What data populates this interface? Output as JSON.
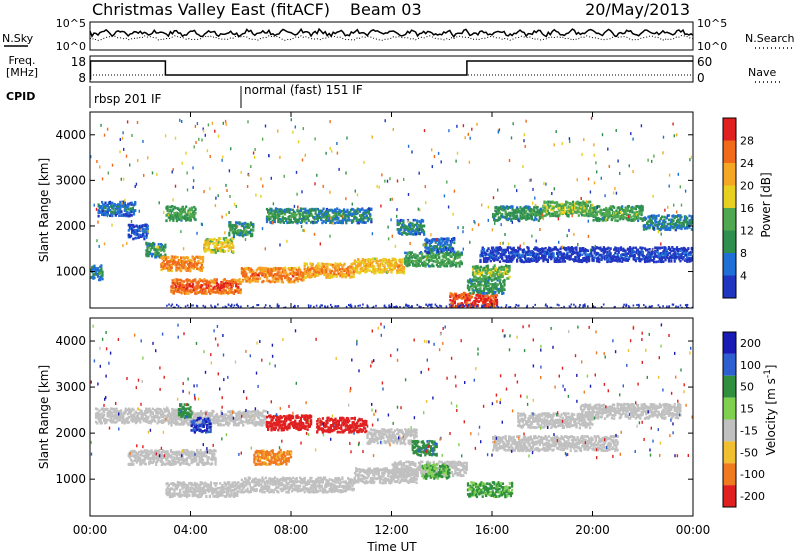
{
  "header": {
    "station": "Christmas Valley East (fitACF)",
    "beam": "Beam 03",
    "date": "20/May/2013"
  },
  "colors": {
    "power_scale": [
      "#2035c0",
      "#1f6fd6",
      "#2f8f4f",
      "#4fa84f",
      "#e8d020",
      "#f5a623",
      "#f06a1a",
      "#e02020"
    ],
    "velocity_scale": [
      "#1a1ab5",
      "#2d5fd0",
      "#2f8f3f",
      "#7fd04f",
      "#c0c0c0",
      "#f0c030",
      "#f07a20",
      "#e02020"
    ],
    "ground_scatter": "#c0c0c0"
  },
  "sky_panel": {
    "left_label": "N.Sky",
    "left_ticks": [
      "10^5",
      "10^0"
    ],
    "right_ticks": [
      "10^5",
      "10^0"
    ],
    "right_label": "N.Search"
  },
  "freq_panel": {
    "left_label_lines": [
      "Freq.",
      "[MHz]"
    ],
    "left_ticks": [
      "18",
      "8"
    ],
    "right_ticks": [
      "60",
      "0"
    ],
    "right_label": "Nave"
  },
  "cpid": {
    "label": "CPID",
    "segments": [
      "rbsp 201 IF",
      "normal (fast) 151 IF"
    ]
  },
  "chart_data": [
    {
      "type": "heatmap",
      "name": "power",
      "ylabel": "Slant Range [km]",
      "xlabel": "",
      "ylim": [
        200,
        4500
      ],
      "yticks": [
        1000,
        2000,
        3000,
        4000
      ],
      "xlim_hours": [
        0,
        24
      ],
      "colorbar": {
        "label": "Power [dB]",
        "ticks": [
          4,
          8,
          12,
          16,
          20,
          24,
          28
        ],
        "range": [
          0,
          32
        ]
      },
      "features": [
        {
          "range_km": 1000,
          "t_start": 0.0,
          "t_end": 0.5,
          "level_db": 10
        },
        {
          "range_km": 2400,
          "t_start": 0.3,
          "t_end": 1.8,
          "level_db": 8
        },
        {
          "range_km": 1900,
          "t_start": 1.5,
          "t_end": 2.3,
          "level_db": 6
        },
        {
          "range_km": 1500,
          "t_start": 2.2,
          "t_end": 3.0,
          "level_db": 12
        },
        {
          "range_km": 1200,
          "t_start": 2.8,
          "t_end": 4.5,
          "level_db": 26
        },
        {
          "range_km": 1600,
          "t_start": 4.5,
          "t_end": 5.7,
          "level_db": 20
        },
        {
          "range_km": 1950,
          "t_start": 5.5,
          "t_end": 6.5,
          "level_db": 12
        },
        {
          "range_km": 700,
          "t_start": 3.2,
          "t_end": 6.0,
          "level_db": 28
        },
        {
          "range_km": 950,
          "t_start": 6.0,
          "t_end": 8.5,
          "level_db": 26
        },
        {
          "range_km": 1050,
          "t_start": 8.5,
          "t_end": 10.5,
          "level_db": 24
        },
        {
          "range_km": 1150,
          "t_start": 10.5,
          "t_end": 12.5,
          "level_db": 22
        },
        {
          "range_km": 1300,
          "t_start": 12.5,
          "t_end": 14.8,
          "level_db": 14
        },
        {
          "range_km": 2300,
          "t_start": 3.0,
          "t_end": 4.2,
          "level_db": 14
        },
        {
          "range_km": 2250,
          "t_start": 7.0,
          "t_end": 8.8,
          "level_db": 12
        },
        {
          "range_km": 2250,
          "t_start": 8.8,
          "t_end": 11.2,
          "level_db": 10
        },
        {
          "range_km": 2000,
          "t_start": 12.2,
          "t_end": 13.3,
          "level_db": 10
        },
        {
          "range_km": 1600,
          "t_start": 13.3,
          "t_end": 14.5,
          "level_db": 8
        },
        {
          "range_km": 400,
          "t_start": 14.3,
          "t_end": 16.2,
          "level_db": 30
        },
        {
          "range_km": 700,
          "t_start": 15.0,
          "t_end": 16.5,
          "level_db": 12
        },
        {
          "range_km": 1000,
          "t_start": 15.2,
          "t_end": 16.7,
          "level_db": 16
        },
        {
          "range_km": 2300,
          "t_start": 16.0,
          "t_end": 18.0,
          "level_db": 12
        },
        {
          "range_km": 2400,
          "t_start": 18.0,
          "t_end": 20.0,
          "level_db": 16
        },
        {
          "range_km": 2300,
          "t_start": 20.0,
          "t_end": 22.0,
          "level_db": 14
        },
        {
          "range_km": 2100,
          "t_start": 22.0,
          "t_end": 24.0,
          "level_db": 10
        },
        {
          "range_km": 1400,
          "t_start": 15.5,
          "t_end": 24.0,
          "level_db": 4
        }
      ]
    },
    {
      "type": "heatmap",
      "name": "velocity",
      "ylabel": "Slant Range [km]",
      "xlabel": "Time UT",
      "ylim": [
        200,
        4500
      ],
      "yticks": [
        1000,
        2000,
        3000,
        4000
      ],
      "xlim_hours": [
        0,
        24
      ],
      "xticks": [
        "00:00",
        "04:00",
        "08:00",
        "12:00",
        "16:00",
        "20:00",
        "00:00"
      ],
      "colorbar": {
        "label": "Velocity [m s^-1]",
        "ticks": [
          200,
          100,
          50,
          15,
          -15,
          -50,
          -100,
          -200
        ],
        "range": [
          -250,
          250
        ]
      },
      "features": [
        {
          "range_km": 2400,
          "t_start": 0.2,
          "t_end": 3.5,
          "velocity": 0
        },
        {
          "range_km": 1500,
          "t_start": 1.5,
          "t_end": 5.0,
          "velocity": 0
        },
        {
          "range_km": 800,
          "t_start": 3.0,
          "t_end": 6.0,
          "velocity": 0
        },
        {
          "range_km": 900,
          "t_start": 6.0,
          "t_end": 10.5,
          "velocity": 0
        },
        {
          "range_km": 1100,
          "t_start": 10.5,
          "t_end": 13.0,
          "velocity": 0
        },
        {
          "range_km": 1250,
          "t_start": 12.0,
          "t_end": 15.0,
          "velocity": 0
        },
        {
          "range_km": 2350,
          "t_start": 3.2,
          "t_end": 7.0,
          "velocity": 0
        },
        {
          "range_km": 1950,
          "t_start": 11.0,
          "t_end": 13.0,
          "velocity": 0
        },
        {
          "range_km": 2200,
          "t_start": 4.0,
          "t_end": 4.8,
          "velocity": 150
        },
        {
          "range_km": 2500,
          "t_start": 3.5,
          "t_end": 4.0,
          "velocity": 60
        },
        {
          "range_km": 2250,
          "t_start": 7.0,
          "t_end": 8.8,
          "velocity": -200
        },
        {
          "range_km": 2200,
          "t_start": 9.0,
          "t_end": 11.0,
          "velocity": -150
        },
        {
          "range_km": 1700,
          "t_start": 12.8,
          "t_end": 13.8,
          "velocity": 60
        },
        {
          "range_km": 1200,
          "t_start": 13.2,
          "t_end": 14.3,
          "velocity": 30
        },
        {
          "range_km": 800,
          "t_start": 15.0,
          "t_end": 16.8,
          "velocity": 40
        },
        {
          "range_km": 1500,
          "t_start": 6.5,
          "t_end": 8.0,
          "velocity": -60
        },
        {
          "range_km": 2300,
          "t_start": 17.0,
          "t_end": 20.0,
          "velocity": 0
        },
        {
          "range_km": 2500,
          "t_start": 19.5,
          "t_end": 23.5,
          "velocity": 0
        },
        {
          "range_km": 1800,
          "t_start": 16.0,
          "t_end": 21.0,
          "velocity": 0
        }
      ]
    }
  ]
}
